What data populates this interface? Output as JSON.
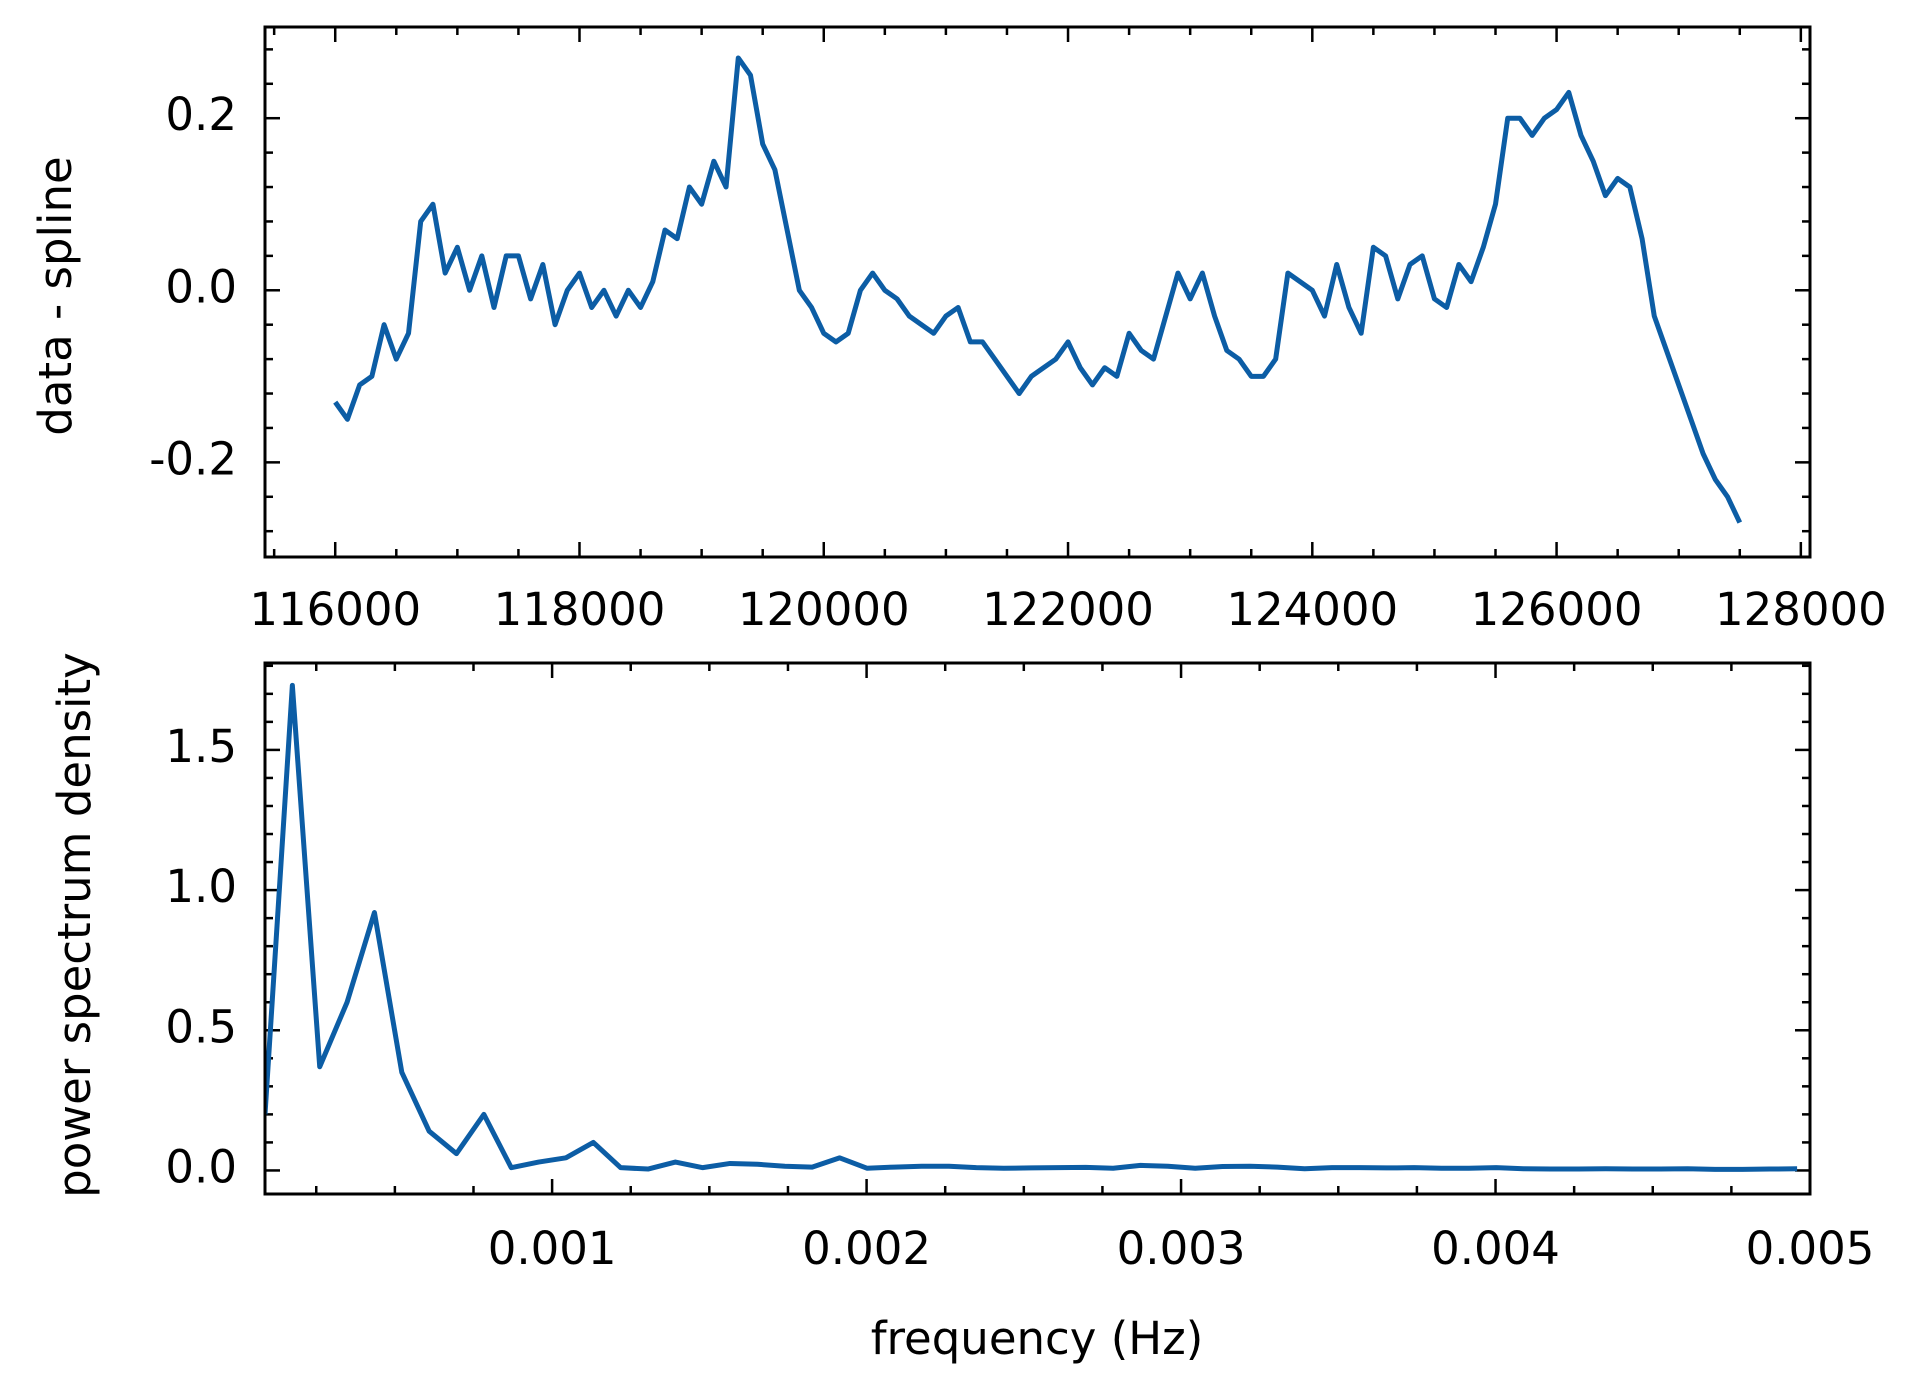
{
  "chart_data": [
    {
      "type": "line",
      "ylabel": "data - spline",
      "color": "#0C5DA5",
      "x": [
        116000,
        116100,
        116200,
        116300,
        116400,
        116500,
        116600,
        116700,
        116800,
        116900,
        117000,
        117100,
        117200,
        117300,
        117400,
        117500,
        117600,
        117700,
        117800,
        117900,
        118000,
        118100,
        118200,
        118300,
        118400,
        118500,
        118600,
        118700,
        118800,
        118900,
        119000,
        119100,
        119200,
        119300,
        119400,
        119500,
        119600,
        119700,
        119800,
        119900,
        120000,
        120100,
        120200,
        120300,
        120400,
        120500,
        120600,
        120700,
        120800,
        120900,
        121000,
        121100,
        121200,
        121300,
        121400,
        121500,
        121600,
        121700,
        121800,
        121900,
        122000,
        122100,
        122200,
        122300,
        122400,
        122500,
        122600,
        122700,
        122800,
        122900,
        123000,
        123100,
        123200,
        123300,
        123400,
        123500,
        123600,
        123700,
        123800,
        123900,
        124000,
        124100,
        124200,
        124300,
        124400,
        124500,
        124600,
        124700,
        124800,
        124900,
        125000,
        125100,
        125200,
        125300,
        125400,
        125500,
        125600,
        125700,
        125800,
        125900,
        126000,
        126100,
        126200,
        126300,
        126400,
        126500,
        126600,
        126700,
        126800,
        126900,
        127000,
        127100,
        127200,
        127300,
        127400,
        127500
      ],
      "values": [
        -0.13,
        -0.15,
        -0.11,
        -0.1,
        -0.04,
        -0.08,
        -0.05,
        0.08,
        0.1,
        0.02,
        0.05,
        0.0,
        0.04,
        -0.02,
        0.04,
        0.04,
        -0.01,
        0.03,
        -0.04,
        0.0,
        0.02,
        -0.02,
        0.0,
        -0.03,
        0.0,
        -0.02,
        0.01,
        0.07,
        0.06,
        0.12,
        0.1,
        0.15,
        0.12,
        0.27,
        0.25,
        0.17,
        0.14,
        0.07,
        0.0,
        -0.02,
        -0.05,
        -0.06,
        -0.05,
        0.0,
        0.02,
        0.0,
        -0.01,
        -0.03,
        -0.04,
        -0.05,
        -0.03,
        -0.02,
        -0.06,
        -0.06,
        -0.08,
        -0.1,
        -0.12,
        -0.1,
        -0.09,
        -0.08,
        -0.06,
        -0.09,
        -0.11,
        -0.09,
        -0.1,
        -0.05,
        -0.07,
        -0.08,
        -0.03,
        0.02,
        -0.01,
        0.02,
        -0.03,
        -0.07,
        -0.08,
        -0.1,
        -0.1,
        -0.08,
        0.02,
        0.01,
        0.0,
        -0.03,
        0.03,
        -0.02,
        -0.05,
        0.05,
        0.04,
        -0.01,
        0.03,
        0.04,
        -0.01,
        -0.02,
        0.03,
        0.01,
        0.05,
        0.1,
        0.2,
        0.2,
        0.18,
        0.2,
        0.21,
        0.23,
        0.18,
        0.15,
        0.11,
        0.13,
        0.12,
        0.06,
        -0.03,
        -0.07,
        -0.11,
        -0.15,
        -0.19,
        -0.22,
        -0.24,
        -0.27
      ],
      "xlim": [
        115425,
        128075
      ],
      "ylim": [
        -0.31,
        0.306
      ],
      "xticks": [
        116000,
        118000,
        120000,
        122000,
        124000,
        126000,
        128000
      ],
      "yticks": [
        -0.2,
        {
          "value": 0,
          "label": "0.0"
        },
        0.2
      ]
    },
    {
      "type": "line",
      "xlabel": "frequency (Hz)",
      "ylabel": "power spectrum density",
      "color": "#0C5DA5",
      "x": [
        8.7e-05,
        0.000174,
        0.000261,
        0.000348,
        0.000435,
        0.000522,
        0.000609,
        0.000696,
        0.000783,
        0.00087,
        0.000957,
        0.001044,
        0.001131,
        0.001218,
        0.001305,
        0.001392,
        0.001479,
        0.001566,
        0.001653,
        0.00174,
        0.001827,
        0.001914,
        0.002001,
        0.002088,
        0.002175,
        0.002262,
        0.002349,
        0.002436,
        0.002523,
        0.00261,
        0.002697,
        0.002784,
        0.002871,
        0.002958,
        0.003045,
        0.003132,
        0.003219,
        0.003306,
        0.003393,
        0.00348,
        0.003567,
        0.003654,
        0.003741,
        0.003828,
        0.003915,
        0.004002,
        0.004089,
        0.004176,
        0.004263,
        0.00435,
        0.004437,
        0.004524,
        0.004611,
        0.004698,
        0.004785,
        0.004872,
        0.004959
      ],
      "values": [
        0.2,
        1.73,
        0.37,
        0.6,
        0.92,
        0.35,
        0.14,
        0.06,
        0.2,
        0.01,
        0.03,
        0.045,
        0.1,
        0.01,
        0.005,
        0.03,
        0.01,
        0.025,
        0.022,
        0.015,
        0.012,
        0.045,
        0.008,
        0.012,
        0.015,
        0.015,
        0.01,
        0.008,
        0.009,
        0.01,
        0.011,
        0.008,
        0.018,
        0.015,
        0.008,
        0.014,
        0.015,
        0.012,
        0.006,
        0.01,
        0.01,
        0.009,
        0.01,
        0.008,
        0.008,
        0.01,
        0.006,
        0.005,
        0.005,
        0.006,
        0.005,
        0.005,
        0.006,
        0.004,
        0.004,
        0.005,
        0.006
      ],
      "xlim": [
        8.7e-05,
        0.005
      ],
      "ylim": [
        -0.084,
        1.81
      ],
      "xticks": [
        0.001,
        0.002,
        0.003,
        0.004,
        0.005
      ],
      "yticks": [
        {
          "value": 0,
          "label": "0.0"
        },
        0.5,
        {
          "value": 1,
          "label": "1.0"
        },
        1.5
      ]
    }
  ]
}
